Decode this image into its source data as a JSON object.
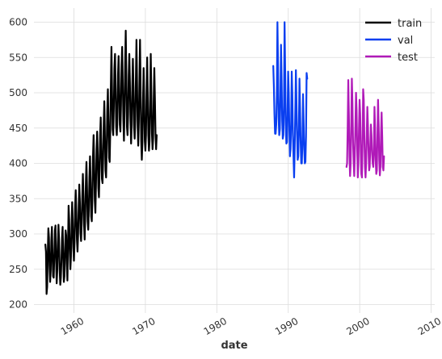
{
  "chart_data": {
    "type": "line",
    "title": "",
    "xlabel": "date",
    "ylabel": "",
    "xlim": [
      1954.4,
      2010.5
    ],
    "ylim": [
      188,
      620
    ],
    "grid": true,
    "legend_position": "top-right",
    "x_ticks": [
      "1960",
      "1970",
      "1980",
      "1990",
      "2000",
      "2010"
    ],
    "y_ticks": [
      "200",
      "250",
      "300",
      "350",
      "400",
      "450",
      "500",
      "550",
      "600"
    ],
    "colors": {
      "train": "#000000",
      "val": "#0a3ff0",
      "test": "#b01ab8",
      "grid": "#dcdcdc"
    },
    "series": [
      {
        "name": "train",
        "start_year": 1956.0,
        "values": [
          285,
          275,
          215,
          225,
          270,
          308,
          295,
          255,
          232,
          248,
          290,
          310,
          272,
          240,
          238,
          268,
          305,
          312,
          265,
          230,
          248,
          284,
          313,
          292,
          250,
          228,
          238,
          262,
          295,
          310,
          270,
          232,
          240,
          275,
          305,
          298,
          258,
          234,
          280,
          340,
          320,
          278,
          250,
          268,
          310,
          345,
          318,
          280,
          262,
          288,
          335,
          362,
          330,
          292,
          275,
          300,
          340,
          370,
          345,
          302,
          290,
          315,
          352,
          385,
          355,
          312,
          292,
          325,
          372,
          402,
          365,
          318,
          306,
          335,
          380,
          410,
          372,
          325,
          318,
          352,
          410,
          440,
          400,
          348,
          330,
          370,
          420,
          445,
          412,
          365,
          352,
          390,
          440,
          465,
          425,
          378,
          372,
          405,
          455,
          488,
          440,
          390,
          380,
          420,
          475,
          505,
          458,
          408,
          402,
          445,
          510,
          565,
          502,
          448,
          440,
          480,
          535,
          555,
          505,
          452,
          440,
          465,
          525,
          552,
          508,
          455,
          445,
          482,
          540,
          565,
          515,
          462,
          432,
          475,
          540,
          588,
          525,
          452,
          440,
          470,
          525,
          555,
          515,
          460,
          428,
          455,
          508,
          548,
          508,
          452,
          435,
          462,
          518,
          575,
          515,
          452,
          425,
          460,
          520,
          575,
          505,
          432,
          405,
          430,
          488,
          535,
          488,
          432,
          418,
          440,
          500,
          550,
          495,
          440,
          418,
          432,
          492,
          555,
          500,
          442,
          420,
          435,
          490,
          535,
          492,
          440,
          420,
          440
        ]
      },
      {
        "name": "val",
        "start_year": 1987.9,
        "values": [
          538,
          510,
          470,
          442,
          442,
          455,
          498,
          600,
          540,
          465,
          440,
          448,
          495,
          568,
          520,
          460,
          435,
          440,
          482,
          600,
          530,
          455,
          428,
          430,
          470,
          530,
          500,
          448,
          410,
          420,
          455,
          530,
          498,
          440,
          410,
          380,
          420,
          475,
          532,
          485,
          440,
          405,
          410,
          448,
          520,
          478,
          430,
          400,
          400,
          432,
          498,
          458,
          420,
          400,
          402,
          438,
          528,
          520
        ]
      },
      {
        "name": "test",
        "start_year": 1998.15,
        "values": [
          395,
          400,
          450,
          518,
          470,
          410,
          382,
          400,
          455,
          520,
          485,
          430,
          400,
          382,
          412,
          455,
          500,
          475,
          420,
          380,
          400,
          450,
          490,
          470,
          420,
          385,
          380,
          430,
          505,
          490,
          438,
          395,
          380,
          400,
          440,
          480,
          455,
          418,
          390,
          395,
          425,
          455,
          440,
          415,
          400,
          395,
          415,
          480,
          450,
          405,
          385,
          390,
          440,
          490,
          455,
          405,
          383,
          395,
          440,
          472,
          438,
          395,
          390,
          410
        ]
      }
    ]
  }
}
